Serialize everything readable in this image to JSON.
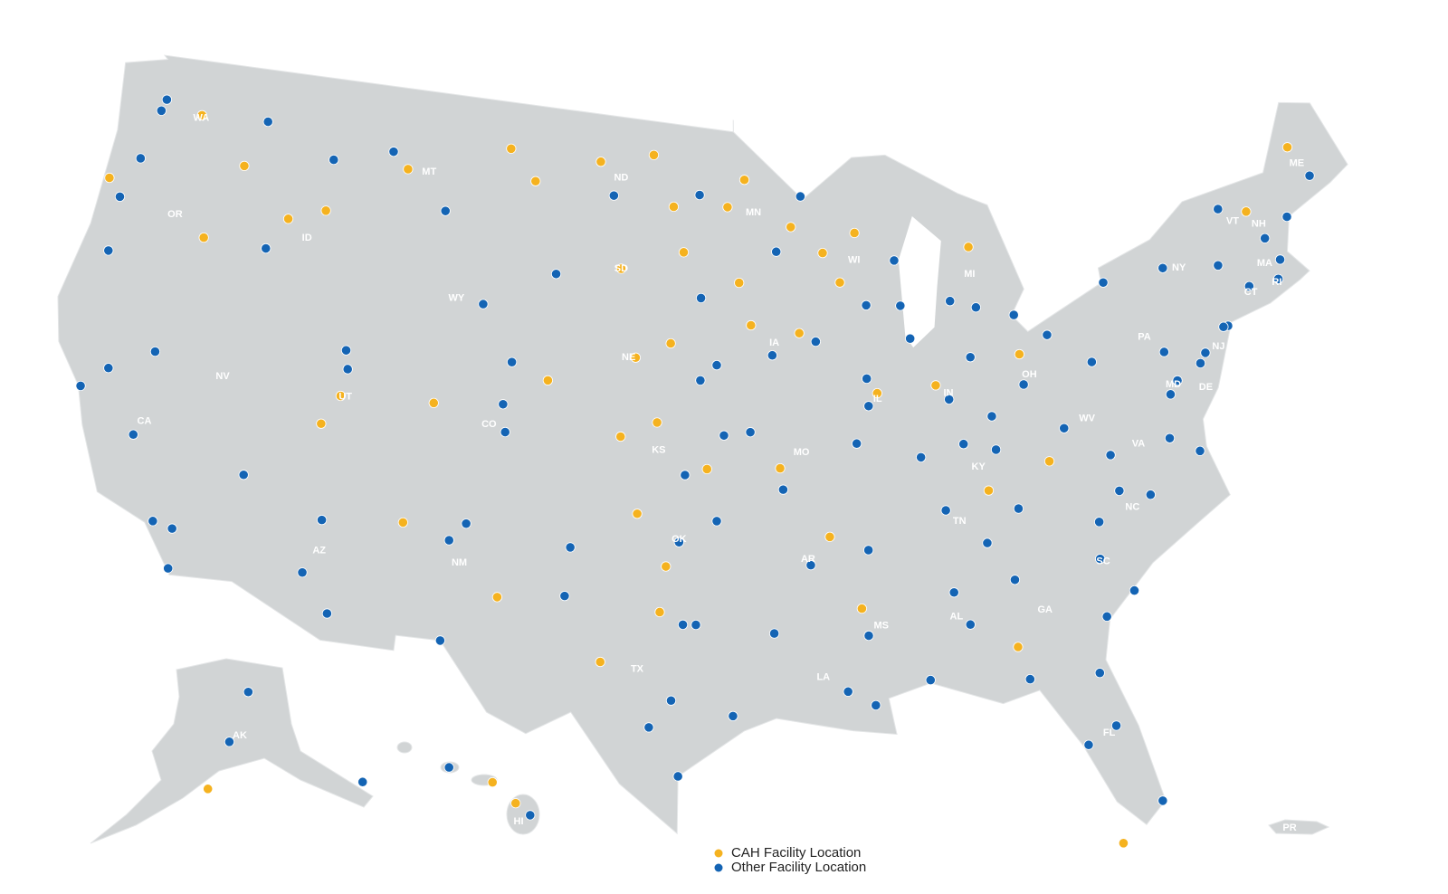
{
  "chart_data": {
    "type": "map",
    "series": [
      {
        "name": "CAH Facility Location",
        "color": "#f5b21f",
        "locations": [
          [
            -120.5,
            47.4
          ],
          [
            -118,
            46.1
          ],
          [
            -123.8,
            44.6
          ],
          [
            -119,
            43.5
          ],
          [
            -115.5,
            44.7
          ],
          [
            -113.9,
            45.2
          ],
          [
            -110.5,
            47
          ],
          [
            -105.8,
            48.1
          ],
          [
            -104.5,
            47.1
          ],
          [
            -112.4,
            38.3
          ],
          [
            -111.8,
            39.3
          ],
          [
            -107.9,
            39.5
          ],
          [
            -103.2,
            40.6
          ],
          [
            -108.5,
            35.5
          ],
          [
            -104.5,
            33.4
          ],
          [
            -101.5,
            47.9
          ],
          [
            -99,
            48.2
          ],
          [
            -98,
            46.5
          ],
          [
            -100.3,
            44.4
          ],
          [
            -97.5,
            45
          ],
          [
            -99.5,
            41.5
          ],
          [
            -98,
            42
          ],
          [
            -100,
            38.9
          ],
          [
            -98.5,
            39.4
          ],
          [
            -96.4,
            37.9
          ],
          [
            -99.2,
            36.4
          ],
          [
            -98,
            34.7
          ],
          [
            -100.4,
            31.5
          ],
          [
            -98.2,
            33.2
          ],
          [
            -95.5,
            46.5
          ],
          [
            -94.7,
            47.4
          ],
          [
            -92.6,
            45.8
          ],
          [
            -95,
            44
          ],
          [
            -94.5,
            42.6
          ],
          [
            -92.4,
            42.3
          ],
          [
            -91.2,
            44.9
          ],
          [
            -89.7,
            45.5
          ],
          [
            -90.5,
            43.9
          ],
          [
            -89.2,
            40.2
          ],
          [
            -86.7,
            40.3
          ],
          [
            -84.6,
            44.7
          ],
          [
            -83,
            41
          ],
          [
            -82.4,
            37.4
          ],
          [
            -85,
            36.7
          ],
          [
            -91.5,
            35.6
          ],
          [
            -93.4,
            37.9
          ],
          [
            -90.4,
            33.2
          ],
          [
            -84.6,
            31.5
          ],
          [
            -72,
            44.2
          ],
          [
            -69.4,
            45.9
          ],
          [
            -81.8,
            24.6
          ],
          [
            -152.4,
            57.8
          ],
          [
            -156.4,
            20.8
          ],
          [
            -155.6,
            20.1
          ]
        ]
      },
      {
        "name": "Other Facility Location",
        "color": "#1464b4",
        "locations": [
          [
            -122.3,
            47.6
          ],
          [
            -122.4,
            47.2
          ],
          [
            -117.4,
            47.7
          ],
          [
            -122.7,
            45.5
          ],
          [
            -123.1,
            44.1
          ],
          [
            -122.9,
            42.3
          ],
          [
            -116.2,
            43.6
          ],
          [
            -122.4,
            37.8
          ],
          [
            -121.5,
            38.6
          ],
          [
            -119.8,
            36.7
          ],
          [
            -118.2,
            34.1
          ],
          [
            -117.2,
            32.7
          ],
          [
            -117.4,
            34
          ],
          [
            -119.8,
            39.5
          ],
          [
            -115.1,
            36.2
          ],
          [
            -111.9,
            40.8
          ],
          [
            -111.7,
            40.2
          ],
          [
            -112.1,
            33.4
          ],
          [
            -110.9,
            32.2
          ],
          [
            -111.7,
            35.2
          ],
          [
            -106.6,
            35.1
          ],
          [
            -106,
            35.7
          ],
          [
            -106.5,
            31.8
          ],
          [
            -105,
            39.7
          ],
          [
            -104.8,
            38.8
          ],
          [
            -108.5,
            45.8
          ],
          [
            -114,
            46.9
          ],
          [
            -111.3,
            47.5
          ],
          [
            -104.8,
            41.1
          ],
          [
            -106.3,
            42.9
          ],
          [
            -103.2,
            44.1
          ],
          [
            -96.7,
            43.5
          ],
          [
            -96.8,
            46.9
          ],
          [
            -100.8,
            46.8
          ],
          [
            -96,
            41.3
          ],
          [
            -96.7,
            40.8
          ],
          [
            -97.3,
            37.7
          ],
          [
            -94.6,
            39.1
          ],
          [
            -95.7,
            39
          ],
          [
            -97.5,
            35.5
          ],
          [
            -96,
            36.2
          ],
          [
            -96.8,
            32.8
          ],
          [
            -97.3,
            32.8
          ],
          [
            -95.4,
            29.8
          ],
          [
            -98.5,
            29.4
          ],
          [
            -97.7,
            30.3
          ],
          [
            -97.4,
            27.8
          ],
          [
            -101.9,
            33.6
          ],
          [
            -101.8,
            35.2
          ],
          [
            -93.3,
            45
          ],
          [
            -92.1,
            46.8
          ],
          [
            -93.6,
            41.6
          ],
          [
            -91.7,
            42
          ],
          [
            -90.2,
            38.6
          ],
          [
            -93.3,
            37.2
          ],
          [
            -92.3,
            34.7
          ],
          [
            -90,
            35.1
          ],
          [
            -90.1,
            30
          ],
          [
            -91.1,
            30.5
          ],
          [
            -93.8,
            32.5
          ],
          [
            -90.2,
            32.3
          ],
          [
            -86.8,
            33.5
          ],
          [
            -86.3,
            32.4
          ],
          [
            -88,
            30.7
          ],
          [
            -86.8,
            36.2
          ],
          [
            -83.9,
            36
          ],
          [
            -85.3,
            35
          ],
          [
            -84.4,
            33.7
          ],
          [
            -81.1,
            32.1
          ],
          [
            -81.7,
            30.3
          ],
          [
            -81.4,
            28.5
          ],
          [
            -82.5,
            28
          ],
          [
            -80.2,
            25.8
          ],
          [
            -84.3,
            30.4
          ],
          [
            -80.8,
            35.2
          ],
          [
            -78.6,
            35.8
          ],
          [
            -79.8,
            36.1
          ],
          [
            -81,
            34
          ],
          [
            -79.9,
            32.8
          ],
          [
            -77.4,
            37.5
          ],
          [
            -76.3,
            36.9
          ],
          [
            -79.9,
            37.3
          ],
          [
            -77,
            38.9
          ],
          [
            -76.6,
            39.3
          ],
          [
            -75.2,
            40
          ],
          [
            -80,
            40.4
          ],
          [
            -76.9,
            40.3
          ],
          [
            -74,
            40.7
          ],
          [
            -73.8,
            42.7
          ],
          [
            -78.9,
            42.9
          ],
          [
            -76.2,
            43
          ],
          [
            -71.1,
            42.4
          ],
          [
            -72.7,
            41.8
          ],
          [
            -71.4,
            41.8
          ],
          [
            -70.3,
            43.7
          ],
          [
            -68.8,
            44.8
          ],
          [
            -73.2,
            44.5
          ],
          [
            -71.5,
            43.2
          ],
          [
            -87.6,
            41.9
          ],
          [
            -89.6,
            39.8
          ],
          [
            -89.6,
            40.7
          ],
          [
            -87.9,
            43
          ],
          [
            -89.4,
            43.1
          ],
          [
            -88,
            44.5
          ],
          [
            -83,
            42.3
          ],
          [
            -85.7,
            43
          ],
          [
            -84.6,
            42.7
          ],
          [
            -86.2,
            39.8
          ],
          [
            -85.1,
            41.1
          ],
          [
            -87.6,
            38
          ],
          [
            -83,
            40
          ],
          [
            -81.7,
            41.5
          ],
          [
            -84.5,
            39.1
          ],
          [
            -85.8,
            38.3
          ],
          [
            -84.5,
            38
          ],
          [
            -81.6,
            38.4
          ],
          [
            -75.5,
            39.7
          ],
          [
            -74.2,
            40.7
          ],
          [
            -149.9,
            61.2
          ],
          [
            -147.7,
            64.8
          ],
          [
            -134.4,
            58.3
          ],
          [
            -157.9,
            21.3
          ],
          [
            -155.1,
            19.7
          ]
        ]
      }
    ],
    "state_labels": [
      "WA",
      "OR",
      "CA",
      "ID",
      "NV",
      "MT",
      "WY",
      "UT",
      "AZ",
      "CO",
      "NM",
      "ND",
      "SD",
      "NE",
      "KS",
      "OK",
      "TX",
      "MN",
      "IA",
      "MO",
      "AR",
      "LA",
      "WI",
      "IL",
      "MI",
      "IN",
      "OH",
      "KY",
      "TN",
      "MS",
      "AL",
      "GA",
      "FL",
      "SC",
      "NC",
      "VA",
      "WV",
      "PA",
      "NY",
      "MD",
      "DE",
      "NJ",
      "CT",
      "RI",
      "MA",
      "VT",
      "NH",
      "ME",
      "AK",
      "HI",
      "PR"
    ]
  }
}
